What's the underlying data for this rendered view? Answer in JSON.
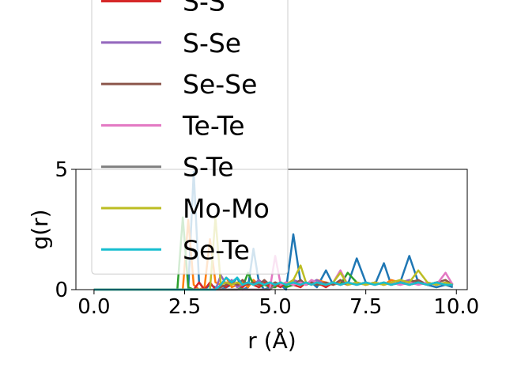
{
  "chart_data": {
    "type": "line",
    "xlabel": "r (Å)",
    "ylabel": "g(r)",
    "xlim": [
      -0.5,
      10.3
    ],
    "ylim": [
      0,
      5
    ],
    "xticks": [
      0.0,
      2.5,
      5.0,
      7.5,
      10.0
    ],
    "xtick_labels": [
      "0.0",
      "2.5",
      "5.0",
      "7.5",
      "10.0"
    ],
    "yticks": [
      0,
      5
    ],
    "ytick_labels": [
      "0",
      "5"
    ],
    "grid": false,
    "legend_position": "upper-left",
    "x": [
      0,
      0.5,
      1.0,
      1.5,
      2.0,
      2.3,
      2.45,
      2.6,
      2.75,
      2.9,
      3.05,
      3.2,
      3.35,
      3.5,
      3.65,
      3.8,
      3.95,
      4.1,
      4.25,
      4.4,
      4.55,
      4.7,
      4.85,
      5.0,
      5.15,
      5.3,
      5.5,
      5.7,
      5.85,
      6.0,
      6.15,
      6.4,
      6.6,
      6.8,
      7.0,
      7.25,
      7.5,
      7.75,
      8.0,
      8.2,
      8.45,
      8.7,
      8.95,
      9.2,
      9.45,
      9.7,
      9.9
    ],
    "series": [
      {
        "name": "",
        "color": "#1f77b4",
        "values": [
          0,
          0,
          0,
          0,
          0,
          0,
          0,
          0,
          4.9,
          0.3,
          0,
          0.2,
          0.1,
          0,
          0.1,
          0.2,
          0.5,
          0,
          0.1,
          1.7,
          0.3,
          0,
          0.1,
          0.3,
          0.2,
          0,
          2.3,
          0.3,
          0.2,
          0.3,
          0.1,
          0.8,
          0.2,
          0.3,
          0.2,
          1.3,
          0.3,
          0.2,
          1.1,
          0.2,
          0.3,
          1.4,
          0.3,
          0.2,
          0.1,
          0.2,
          0.1
        ]
      },
      {
        "name": "",
        "color": "#ff7f0e",
        "values": [
          0,
          0,
          0,
          0,
          0,
          0,
          0,
          2.9,
          0.2,
          0,
          0.1,
          2.1,
          0.3,
          0.2,
          0.5,
          0.1,
          0.2,
          0.3,
          0.1,
          0.4,
          0.2,
          0.3,
          0.2,
          0.1,
          0.3,
          0.2,
          0.4,
          0.2,
          0.3,
          0.2,
          0.4,
          0.3,
          0.2,
          0.3,
          0.2,
          0.3,
          0.2,
          0.3,
          0.2,
          0.4,
          0.3,
          0.2,
          0.3,
          0.2,
          0.3,
          0.2,
          0.2
        ]
      },
      {
        "name": "",
        "color": "#2ca02c",
        "values": [
          0,
          0,
          0,
          0,
          0,
          0,
          3.0,
          0.1,
          0,
          0,
          0,
          0,
          0,
          0,
          0,
          0,
          0,
          0.1,
          0.7,
          0.2,
          0.1,
          0.2,
          0.1,
          0.1,
          0.3,
          0.1,
          0.2,
          0.4,
          0.2,
          0.3,
          0.2,
          0.2,
          0.3,
          0.2,
          0.7,
          0.3,
          0.2,
          0.3,
          0.2,
          0.3,
          0.2,
          0.4,
          0.3,
          0.2,
          0.3,
          0.2,
          0.2
        ]
      },
      {
        "name": "S-S",
        "color": "#d62728",
        "values": [
          0,
          0,
          0,
          0,
          0,
          0,
          0,
          0,
          0,
          0.3,
          0,
          0.3,
          0,
          0.2,
          0.1,
          0.3,
          0.2,
          0.1,
          0.3,
          0.2,
          0.1,
          0.3,
          0.1,
          0.2,
          0.1,
          0.3,
          0.2,
          0.1,
          0.3,
          0.2,
          0.3,
          0.1,
          0.3,
          0.2,
          0.3,
          0.2,
          0.3,
          0.2,
          0.3,
          0.2,
          0.3,
          0.2,
          0.3,
          0.2,
          0.3,
          0.2,
          0.2
        ]
      },
      {
        "name": "S-Se",
        "color": "#9467bd",
        "values": [
          0,
          0,
          0,
          0,
          0,
          0,
          0,
          0,
          0,
          0,
          0,
          0,
          0,
          0.6,
          0.2,
          0.4,
          0.1,
          0.2,
          0.3,
          0.2,
          0.4,
          0.2,
          0.3,
          0.2,
          0.3,
          0.2,
          0.4,
          0.3,
          0.2,
          0.3,
          0.4,
          0.2,
          0.3,
          0.2,
          0.3,
          0.2,
          0.3,
          0.2,
          0.3,
          0.2,
          0.3,
          0.4,
          0.2,
          0.3,
          0.2,
          0.3,
          0.2
        ]
      },
      {
        "name": "Se-Se",
        "color": "#8c564b",
        "values": [
          0,
          0,
          0,
          0,
          0,
          0,
          0,
          0,
          0,
          0,
          0,
          0,
          0,
          0.1,
          0.2,
          0.3,
          0.2,
          0.4,
          0.2,
          0.3,
          0.2,
          0.4,
          0.2,
          0.3,
          0.2,
          0.3,
          0.2,
          0.4,
          0.2,
          0.3,
          0.2,
          0.3,
          0.2,
          0.4,
          0.2,
          0.3,
          0.2,
          0.3,
          0.2,
          0.3,
          0.2,
          0.3,
          0.4,
          0.2,
          0.3,
          0.4,
          0.2
        ]
      },
      {
        "name": "Te-Te",
        "color": "#e377c2",
        "values": [
          0,
          0,
          0,
          0,
          0,
          0,
          0,
          0,
          0,
          0,
          0,
          0,
          0,
          0,
          0,
          0,
          0,
          0,
          0,
          0,
          0,
          0,
          0,
          1.4,
          0.2,
          0.3,
          0.2,
          0.3,
          0.2,
          0.4,
          0.3,
          0.2,
          0.3,
          0.8,
          0.2,
          0.3,
          0.2,
          0.3,
          0.2,
          0.3,
          0.2,
          0.3,
          0.2,
          0.3,
          0.2,
          0.7,
          0.2
        ]
      },
      {
        "name": "S-Te",
        "color": "#7f7f7f",
        "values": [
          0,
          0,
          0,
          0,
          0,
          0,
          0,
          0,
          0,
          0,
          0,
          0,
          0,
          0,
          0,
          0,
          0,
          0,
          0,
          0,
          0,
          0,
          0,
          0.2,
          0.3,
          0.2,
          0.3,
          0.2,
          0.3,
          0.2,
          0.3,
          0.2,
          0.3,
          0.2,
          0.3,
          0.2,
          0.3,
          0.2,
          0.3,
          0.2,
          0.3,
          0.2,
          0.3,
          0.2,
          0.3,
          0.2,
          0.2
        ]
      },
      {
        "name": "Mo-Mo",
        "color": "#bcbd22",
        "values": [
          0,
          0,
          0,
          0,
          0,
          0,
          0,
          0,
          0,
          0,
          0,
          0,
          3.0,
          0.2,
          0.3,
          0.2,
          0.3,
          0.2,
          0.3,
          0.2,
          0.3,
          0.2,
          0.3,
          0.2,
          0.3,
          0.2,
          0.4,
          1.0,
          0.3,
          0.2,
          0.3,
          0.2,
          0.3,
          0.7,
          0.2,
          0.3,
          0.2,
          0.3,
          0.2,
          0.3,
          0.4,
          0.3,
          0.8,
          0.3,
          0.2,
          0.3,
          0.2
        ]
      },
      {
        "name": "Se-Te",
        "color": "#17becf",
        "values": [
          0,
          0,
          0,
          0,
          0,
          0,
          0,
          0,
          0,
          0,
          0,
          0,
          0,
          0.2,
          0.5,
          0.3,
          0.5,
          0.2,
          0.3,
          0.2,
          0.3,
          0.2,
          0.3,
          0.2,
          0.3,
          0.2,
          0.3,
          0.2,
          0.3,
          0.2,
          0.3,
          0.2,
          0.3,
          0.2,
          0.3,
          0.2,
          0.3,
          0.2,
          0.3,
          0.2,
          0.3,
          0.2,
          0.3,
          0.2,
          0.3,
          0.2,
          0.2
        ]
      }
    ]
  }
}
